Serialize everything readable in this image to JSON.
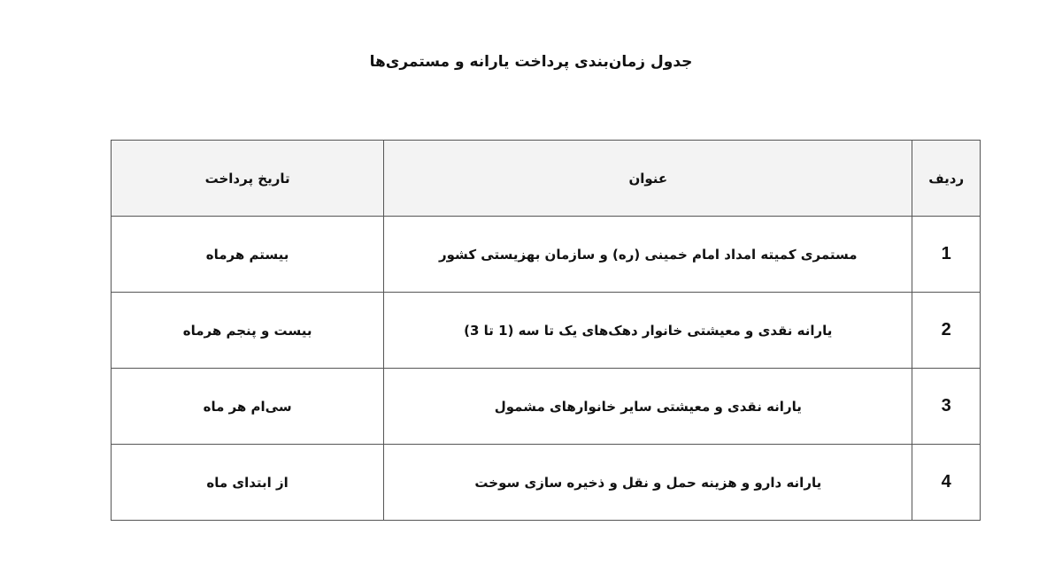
{
  "title": "جدول زمان‌بندی پرداخت یارانه و مستمری‌ها",
  "table": {
    "headers": {
      "row": "ردیف",
      "subject": "عنوان",
      "date": "تاریخ پرداخت"
    },
    "rows": [
      {
        "num": "1",
        "subject": "مستمری کمیته امداد امام خمینی (ره) و سازمان بهزیستی کشور",
        "date": "بیستم هرماه"
      },
      {
        "num": "2",
        "subject": "یارانه نقدی و معیشتی خانوار دهک‌های یک تا سه (1 تا 3)",
        "date": "بیست و پنجم هرماه"
      },
      {
        "num": "3",
        "subject": "یارانه نقدی و معیشتی سایر خانوارهای مشمول",
        "date": "سی‌ام هر ماه"
      },
      {
        "num": "4",
        "subject": "یارانه دارو و هزینه حمل و نقل و ذخیره سازی سوخت",
        "date": "از ابتدای ماه"
      }
    ]
  },
  "colors": {
    "header_bg": "#f3f3f3",
    "border": "#555555"
  }
}
